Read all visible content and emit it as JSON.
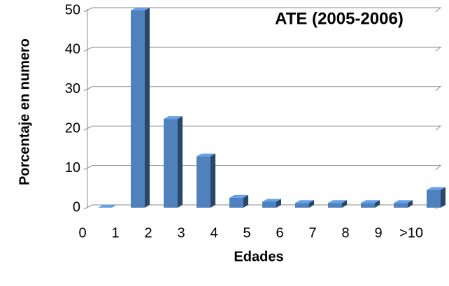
{
  "chart_data": {
    "type": "bar",
    "title": "ATE (2005-2006)",
    "x_label": "Edades",
    "y_label": "Porcentaje en numero",
    "categories": [
      "0",
      "1",
      "2",
      "3",
      "4",
      "5",
      "6",
      "7",
      "8",
      "9",
      ">10"
    ],
    "values": [
      0,
      50,
      22.5,
      13,
      2.5,
      1.5,
      1.2,
      1.2,
      1.2,
      1.2,
      4.5
    ],
    "color": "#4f81bd",
    "ylim": [
      0,
      50
    ],
    "yticks": [
      0,
      10,
      20,
      30,
      40,
      50
    ],
    "grid": true
  }
}
